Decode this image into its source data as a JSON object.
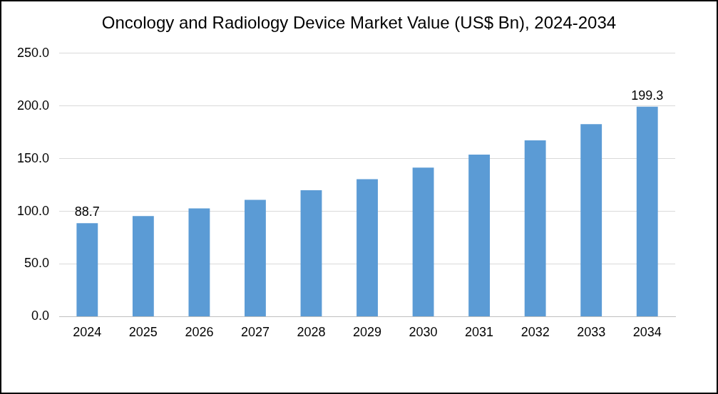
{
  "chart_data": {
    "type": "bar",
    "title": "Oncology and Radiology Device Market Value (US$ Bn), 2024-2034",
    "categories": [
      "2024",
      "2025",
      "2026",
      "2027",
      "2028",
      "2029",
      "2030",
      "2031",
      "2032",
      "2033",
      "2034"
    ],
    "values": [
      88.7,
      95.4,
      102.8,
      110.8,
      120.0,
      130.5,
      141.5,
      153.8,
      167.4,
      182.8,
      199.3
    ],
    "value_labels": [
      "88.7",
      null,
      null,
      null,
      null,
      null,
      null,
      null,
      null,
      null,
      "199.3"
    ],
    "color": "#5b9bd5",
    "ylim": [
      0,
      250
    ],
    "yticks": [
      {
        "value": 0,
        "label": "0.0"
      },
      {
        "value": 50,
        "label": "50.0"
      },
      {
        "value": 100,
        "label": "100.0"
      },
      {
        "value": 150,
        "label": "150.0"
      },
      {
        "value": 200,
        "label": "200.0"
      },
      {
        "value": 250,
        "label": "250.0"
      }
    ],
    "grid": "y"
  }
}
